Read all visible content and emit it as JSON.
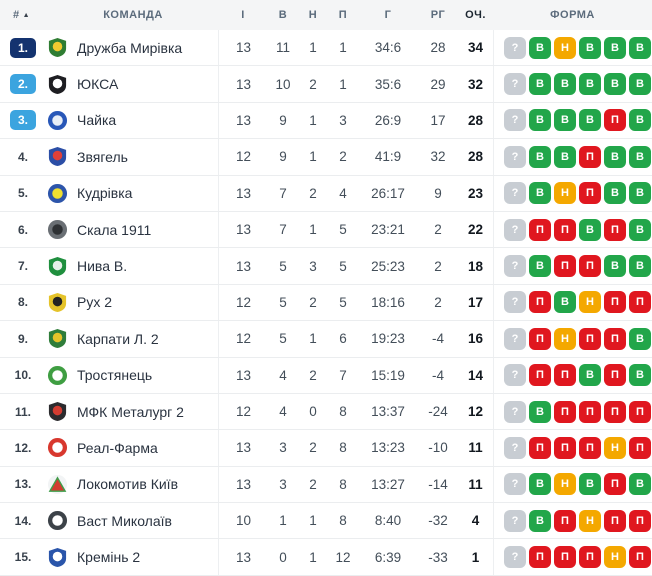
{
  "table": {
    "headers": {
      "position": "#",
      "sort_icon": "▲",
      "team": "КОМАНДА",
      "played": "І",
      "wins": "В",
      "draws": "Н",
      "losses": "П",
      "goals": "Г",
      "goal_diff": "РГ",
      "points": "ОЧ.",
      "form": "ФОРМА"
    },
    "rows": [
      {
        "position": "1.",
        "style": "navy",
        "team": "Дружба Мирівка",
        "played": 13,
        "wins": 11,
        "draws": 1,
        "losses": 1,
        "goals": "34:6",
        "goal_diff": "28",
        "points": 34,
        "form": [
          "U",
          "W",
          "D",
          "W",
          "W",
          "W"
        ],
        "logo": {
          "shape": "shield",
          "primary": "#2f7d33",
          "secondary": "#f0c930"
        }
      },
      {
        "position": "2.",
        "style": "blue",
        "team": "ЮКСА",
        "played": 13,
        "wins": 10,
        "draws": 2,
        "losses": 1,
        "goals": "35:6",
        "goal_diff": "29",
        "points": 32,
        "form": [
          "U",
          "W",
          "W",
          "W",
          "W",
          "W"
        ],
        "logo": {
          "shape": "shield",
          "primary": "#1e1e22",
          "secondary": "#ffffff"
        }
      },
      {
        "position": "3.",
        "style": "blue",
        "team": "Чайка",
        "played": 13,
        "wins": 9,
        "draws": 1,
        "losses": 3,
        "goals": "26:9",
        "goal_diff": "17",
        "points": 28,
        "form": [
          "U",
          "W",
          "W",
          "W",
          "L",
          "W"
        ],
        "logo": {
          "shape": "circle",
          "primary": "#2857b8",
          "secondary": "#e8eef7"
        }
      },
      {
        "position": "4.",
        "style": "plain",
        "team": "Звягель",
        "played": 12,
        "wins": 9,
        "draws": 1,
        "losses": 2,
        "goals": "41:9",
        "goal_diff": "32",
        "points": 28,
        "form": [
          "U",
          "W",
          "W",
          "L",
          "W",
          "W"
        ],
        "logo": {
          "shape": "shield",
          "primary": "#2b4ea6",
          "secondary": "#e04038"
        }
      },
      {
        "position": "5.",
        "style": "plain",
        "team": "Кудрівка",
        "played": 13,
        "wins": 7,
        "draws": 2,
        "losses": 4,
        "goals": "26:17",
        "goal_diff": "9",
        "points": 23,
        "form": [
          "U",
          "W",
          "D",
          "L",
          "W",
          "W"
        ],
        "logo": {
          "shape": "circle",
          "primary": "#2d55aa",
          "secondary": "#f0e030"
        }
      },
      {
        "position": "6.",
        "style": "plain",
        "team": "Скала 1911",
        "played": 13,
        "wins": 7,
        "draws": 1,
        "losses": 5,
        "goals": "23:21",
        "goal_diff": "2",
        "points": 22,
        "form": [
          "U",
          "L",
          "L",
          "W",
          "L",
          "W"
        ],
        "logo": {
          "shape": "circle",
          "primary": "#6a6f74",
          "secondary": "#2e3134"
        }
      },
      {
        "position": "7.",
        "style": "plain",
        "team": "Нива В.",
        "played": 13,
        "wins": 5,
        "draws": 3,
        "losses": 5,
        "goals": "25:23",
        "goal_diff": "2",
        "points": 18,
        "form": [
          "U",
          "W",
          "L",
          "L",
          "W",
          "W"
        ],
        "logo": {
          "shape": "shield",
          "primary": "#1f8f3e",
          "secondary": "#e6f0e8"
        }
      },
      {
        "position": "8.",
        "style": "plain",
        "team": "Рух 2",
        "played": 12,
        "wins": 5,
        "draws": 2,
        "losses": 5,
        "goals": "18:16",
        "goal_diff": "2",
        "points": 17,
        "form": [
          "U",
          "L",
          "W",
          "D",
          "L",
          "L"
        ],
        "logo": {
          "shape": "shield",
          "primary": "#e5c32a",
          "secondary": "#232323"
        }
      },
      {
        "position": "9.",
        "style": "plain",
        "team": "Карпати Л. 2",
        "played": 12,
        "wins": 5,
        "draws": 1,
        "losses": 6,
        "goals": "19:23",
        "goal_diff": "-4",
        "points": 16,
        "form": [
          "U",
          "L",
          "D",
          "L",
          "L",
          "W"
        ],
        "logo": {
          "shape": "shield",
          "primary": "#2f7d3a",
          "secondary": "#e5c32a"
        }
      },
      {
        "position": "10.",
        "style": "plain",
        "team": "Тростянець",
        "played": 13,
        "wins": 4,
        "draws": 2,
        "losses": 7,
        "goals": "15:19",
        "goal_diff": "-4",
        "points": 14,
        "form": [
          "U",
          "L",
          "L",
          "W",
          "L",
          "W"
        ],
        "logo": {
          "shape": "circle",
          "primary": "#3f9e42",
          "secondary": "#ffffff"
        }
      },
      {
        "position": "11.",
        "style": "plain",
        "team": "МФК Металург 2",
        "played": 12,
        "wins": 4,
        "draws": 0,
        "losses": 8,
        "goals": "13:37",
        "goal_diff": "-24",
        "points": 12,
        "form": [
          "U",
          "W",
          "L",
          "L",
          "L",
          "L"
        ],
        "logo": {
          "shape": "shield",
          "primary": "#2b2b2e",
          "secondary": "#d23c31"
        }
      },
      {
        "position": "12.",
        "style": "plain",
        "team": "Реал-Фарма",
        "played": 13,
        "wins": 3,
        "draws": 2,
        "losses": 8,
        "goals": "13:23",
        "goal_diff": "-10",
        "points": 11,
        "form": [
          "U",
          "L",
          "L",
          "L",
          "D",
          "L"
        ],
        "logo": {
          "shape": "circle",
          "primary": "#d8382e",
          "secondary": "#ffffff"
        }
      },
      {
        "position": "13.",
        "style": "plain",
        "team": "Локомотив Київ",
        "played": 13,
        "wins": 3,
        "draws": 2,
        "losses": 8,
        "goals": "13:27",
        "goal_diff": "-14",
        "points": 11,
        "form": [
          "U",
          "W",
          "D",
          "W",
          "L",
          "W"
        ],
        "logo": {
          "shape": "triangle",
          "primary": "#f2f4f5",
          "secondary": "#d23c31"
        }
      },
      {
        "position": "14.",
        "style": "plain",
        "team": "Васт Миколаїв",
        "played": 10,
        "wins": 1,
        "draws": 1,
        "losses": 8,
        "goals": "8:40",
        "goal_diff": "-32",
        "points": 4,
        "form": [
          "U",
          "W",
          "L",
          "D",
          "L",
          "L"
        ],
        "logo": {
          "shape": "circle",
          "primary": "#3c4248",
          "secondary": "#ffffff"
        }
      },
      {
        "position": "15.",
        "style": "plain",
        "team": "Кремінь 2",
        "played": 13,
        "wins": 0,
        "draws": 1,
        "losses": 12,
        "goals": "6:39",
        "goal_diff": "-33",
        "points": 1,
        "form": [
          "U",
          "L",
          "L",
          "L",
          "D",
          "L"
        ],
        "logo": {
          "shape": "shield",
          "primary": "#2a55aa",
          "secondary": "#ffffff"
        }
      }
    ]
  },
  "form_labels": {
    "W": "В",
    "D": "Н",
    "L": "П",
    "U": "?"
  },
  "colors": {
    "leader_badge": "#14336f",
    "promo_badge": "#3ba4df",
    "form_win": "#22a64a",
    "form_draw": "#f4a800",
    "form_loss": "#e0171f",
    "form_unknown": "#c8cdd3",
    "header_bg": "#f4f5f6"
  }
}
